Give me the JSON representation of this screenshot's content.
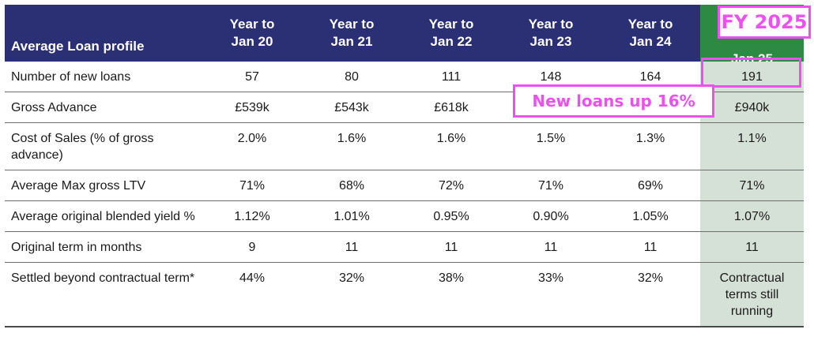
{
  "table": {
    "header_label": "Average Loan profile",
    "columns": [
      {
        "line1": "Year to",
        "line2": "Jan 20"
      },
      {
        "line1": "Year to",
        "line2": "Jan 21"
      },
      {
        "line1": "Year to",
        "line2": "Jan 22"
      },
      {
        "line1": "Year to",
        "line2": "Jan 23"
      },
      {
        "line1": "Year to",
        "line2": "Jan 24"
      },
      {
        "line1": "",
        "line2": "Jan 25"
      }
    ],
    "rows": [
      {
        "label": "Number of new loans",
        "values": [
          "57",
          "80",
          "111",
          "148",
          "164",
          "191"
        ]
      },
      {
        "label": "Gross Advance",
        "values": [
          "£539k",
          "£543k",
          "£618k",
          "",
          "",
          "£940k"
        ]
      },
      {
        "label": "Cost of Sales (% of gross advance)",
        "values": [
          "2.0%",
          "1.6%",
          "1.6%",
          "1.5%",
          "1.3%",
          "1.1%"
        ]
      },
      {
        "label": "Average Max gross LTV",
        "values": [
          "71%",
          "68%",
          "72%",
          "71%",
          "69%",
          "71%"
        ]
      },
      {
        "label": "Average original blended yield %",
        "values": [
          "1.12%",
          "1.01%",
          "0.95%",
          "0.90%",
          "1.05%",
          "1.07%"
        ]
      },
      {
        "label": "Original term in months",
        "values": [
          "9",
          "11",
          "11",
          "11",
          "11",
          "11"
        ]
      },
      {
        "label": "Settled beyond contractual term*",
        "values": [
          "44%",
          "32%",
          "38%",
          "33%",
          "32%",
          "Contractual terms still running"
        ]
      }
    ]
  },
  "annotations": {
    "fy_label": "FY 2025",
    "new_loans_label": "New loans up 16%"
  },
  "colors": {
    "header_bg": "#2b2f73",
    "highlight_header_bg": "#2d8a43",
    "highlight_column_bg": "#d5e0d7",
    "annotation": "#ee4ff0"
  }
}
